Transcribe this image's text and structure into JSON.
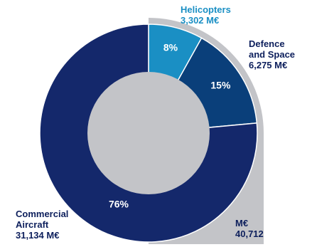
{
  "chart_data": {
    "type": "pie",
    "subtype": "donut",
    "unit": "M€",
    "total": {
      "label": "M€",
      "value": "40,712"
    },
    "slices": [
      {
        "name": "Helicopters",
        "value": 3302,
        "value_label": "3,302 M€",
        "percent_label": "8%",
        "color": "#1a8fc4"
      },
      {
        "name": "Defence and Space",
        "value": 6275,
        "value_label": "6,275 M€",
        "percent_label": "15%",
        "color": "#0a3f7a"
      },
      {
        "name": "Commercial Aircraft",
        "value": 31134,
        "value_label": "31,134 M€",
        "percent_label": "76%",
        "color": "#14286b"
      }
    ],
    "labels": {
      "helicopters": [
        "Helicopters",
        "3,302 M€"
      ],
      "defence": [
        "Defence",
        "and Space",
        "6,275 M€"
      ],
      "commercial": [
        "Commercial",
        "Aircraft",
        "31,134 M€"
      ]
    },
    "colors": {
      "hole": "#c3c4c8",
      "backdrop": "#c3c4c8",
      "text_dark": "#0d1f5c",
      "text_light": "#ffffff"
    }
  }
}
